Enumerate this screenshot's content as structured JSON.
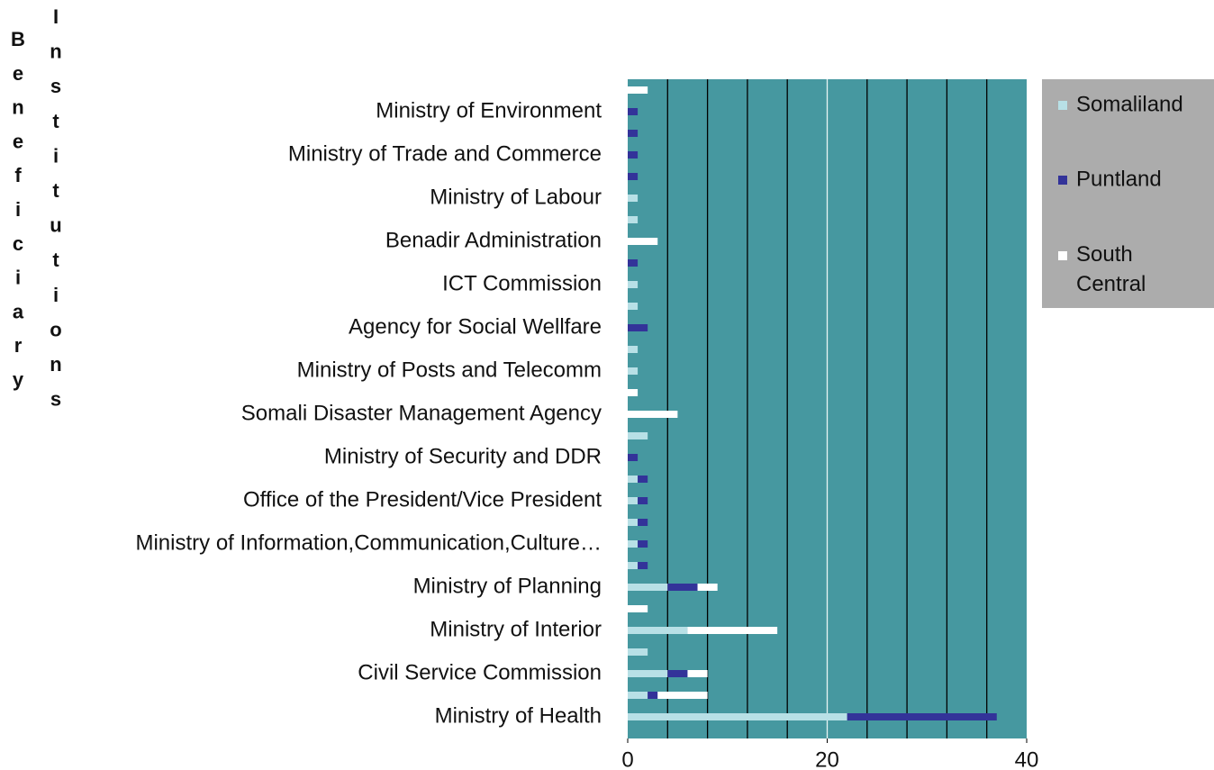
{
  "chart_data": {
    "type": "stacked_barh",
    "y_title": [
      "Beneficiary",
      "Institutions"
    ],
    "categories": [
      "Ministry of Health",
      null,
      "Civil Service Commission",
      null,
      "Ministry of Interior",
      null,
      "Ministry of Planning",
      null,
      "Ministry of Information,Communication,Culture…",
      null,
      "Office of the President/Vice President",
      null,
      "Ministry of Security and DDR",
      null,
      "Somali Disaster Management Agency",
      null,
      "Ministry of Posts and Telecomm",
      null,
      "Agency for Social Wellfare",
      null,
      "ICT Commission",
      null,
      "Benadir Administration",
      null,
      "Ministry of Labour",
      null,
      "Ministry of Trade and Commerce",
      null,
      "Ministry of Environment",
      null
    ],
    "series": [
      {
        "name": "Somaliland",
        "color": "#b8e0e6",
        "values": [
          22,
          2,
          4,
          2,
          6,
          0,
          4,
          1,
          1,
          1,
          1,
          1,
          0,
          2,
          0,
          0,
          1,
          1,
          0,
          1,
          1,
          0,
          0,
          1,
          1,
          0,
          0,
          0,
          0,
          0
        ]
      },
      {
        "name": "Puntland",
        "color": "#333399",
        "values": [
          15,
          1,
          2,
          0,
          0,
          0,
          3,
          1,
          1,
          1,
          1,
          1,
          1,
          0,
          0,
          0,
          0,
          0,
          2,
          0,
          0,
          1,
          0,
          0,
          0,
          1,
          1,
          1,
          1,
          0
        ]
      },
      {
        "name": "South Central",
        "color": "#ffffff",
        "values": [
          0,
          5,
          2,
          0,
          9,
          2,
          2,
          0,
          0,
          0,
          0,
          0,
          0,
          0,
          5,
          1,
          0,
          0,
          0,
          0,
          0,
          0,
          3,
          0,
          0,
          0,
          0,
          0,
          0,
          2
        ]
      }
    ],
    "xlim": [
      0,
      40
    ],
    "xticks": [
      0,
      20,
      40
    ],
    "xgrid": [
      4,
      8,
      12,
      16,
      20,
      24,
      28,
      32,
      36
    ],
    "plot_color": "#4698a0",
    "legend_color": "#acacac",
    "legend": "right"
  }
}
